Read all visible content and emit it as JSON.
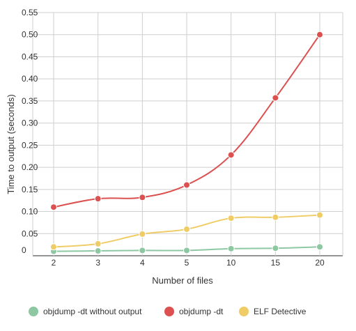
{
  "chart_data": {
    "type": "line",
    "xlabel": "Number of files",
    "ylabel": "Time to output (seconds)",
    "categories": [
      "2",
      "3",
      "4",
      "5",
      "10",
      "15",
      "20"
    ],
    "ylim": [
      0,
      0.55
    ],
    "yticks": [
      "0",
      "0.05",
      "0.10",
      "0.15",
      "0.20",
      "0.25",
      "0.30",
      "0.35",
      "0.40",
      "0.45",
      "0.50",
      "0.55"
    ],
    "grid": true,
    "legend_position": "bottom",
    "series": [
      {
        "name": "objdump -dt without output",
        "color": "#8ec8a3",
        "values": [
          0.01,
          0.011,
          0.012,
          0.012,
          0.016,
          0.017,
          0.02
        ]
      },
      {
        "name": "objdump -dt",
        "color": "#dc5050",
        "values": [
          0.11,
          0.129,
          0.132,
          0.16,
          0.228,
          0.357,
          0.5
        ]
      },
      {
        "name": "ELF Detective",
        "color": "#f0cc66",
        "values": [
          0.02,
          0.027,
          0.049,
          0.06,
          0.085,
          0.087,
          0.092
        ]
      }
    ]
  }
}
